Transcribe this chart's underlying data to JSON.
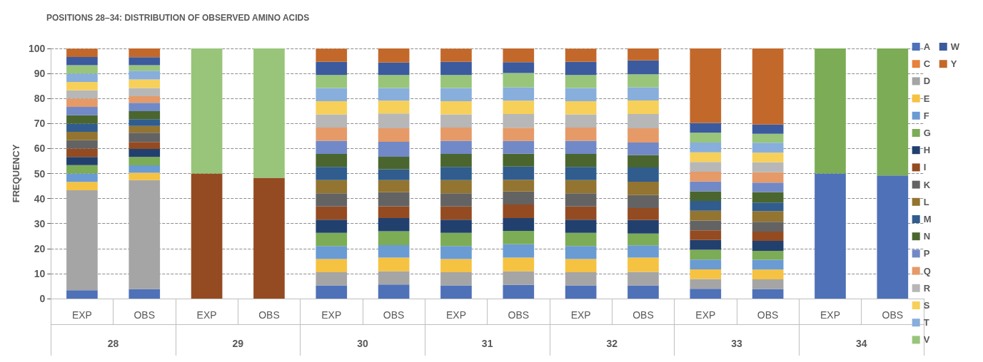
{
  "chart_data": {
    "type": "bar",
    "title": "POSITIONS 28–34: DISTRIBUTION OF OBSERVED AMINO ACIDS",
    "ylabel": "FREQUENCY",
    "categories": [
      "EXP",
      "OBS",
      "EXP",
      "OBS",
      "EXP",
      "OBS",
      "EXP",
      "OBS",
      "EXP",
      "OBS",
      "EXP",
      "OBS",
      "EXP",
      "OBS"
    ],
    "annotations": [
      "28",
      "29",
      "30",
      "31",
      "32",
      "33",
      "34"
    ],
    "stacked": true,
    "ylim": [
      0,
      100
    ],
    "yticks": [
      0,
      10,
      20,
      30,
      40,
      50,
      60,
      70,
      80,
      90,
      100
    ],
    "grid": "y",
    "legend": "right",
    "series": [
      {
        "name": "A",
        "color": "#4e71b8",
        "values": [
          3.33,
          3.8,
          0,
          0,
          5.26,
          5.6,
          5.26,
          5.5,
          5.26,
          5.3,
          3.9,
          3.8,
          50,
          49.2
        ]
      },
      {
        "name": "C",
        "color": "#e5823d",
        "values": [
          0,
          0,
          0,
          0,
          0,
          0,
          0,
          0,
          0,
          0,
          0,
          0,
          0,
          0
        ]
      },
      {
        "name": "D",
        "color": "#a5a5a5",
        "values": [
          40,
          43.6,
          0,
          0,
          5.26,
          5.3,
          5.26,
          5.4,
          5.26,
          5.4,
          3.9,
          3.9,
          0,
          0
        ]
      },
      {
        "name": "E",
        "color": "#f5c242",
        "values": [
          3.33,
          2.9,
          0,
          0,
          5.26,
          5.5,
          5.26,
          5.5,
          5.26,
          5.7,
          3.9,
          3.9,
          0,
          0
        ]
      },
      {
        "name": "F",
        "color": "#6a9bd3",
        "values": [
          3.33,
          3.0,
          0,
          0,
          5.26,
          5.0,
          5.26,
          5.3,
          5.26,
          4.9,
          3.9,
          3.9,
          0,
          0
        ]
      },
      {
        "name": "G",
        "color": "#7cac55",
        "values": [
          3.33,
          3.3,
          0,
          0,
          5.26,
          5.5,
          5.26,
          5.4,
          5.26,
          4.7,
          3.9,
          3.6,
          50,
          50.8
        ]
      },
      {
        "name": "H",
        "color": "#22406e",
        "values": [
          3.33,
          3.2,
          0,
          0,
          5.26,
          5.3,
          5.26,
          5.1,
          5.26,
          5.4,
          3.9,
          4.0,
          0,
          0
        ]
      },
      {
        "name": "I",
        "color": "#944b21",
        "values": [
          3.33,
          2.8,
          50,
          48.3,
          5.26,
          4.7,
          5.26,
          5.4,
          5.26,
          4.8,
          3.9,
          3.7,
          0,
          0
        ]
      },
      {
        "name": "K",
        "color": "#636363",
        "values": [
          3.33,
          3.7,
          0,
          0,
          5.26,
          5.6,
          5.26,
          5.2,
          5.26,
          5.2,
          3.9,
          3.9,
          0,
          0
        ]
      },
      {
        "name": "L",
        "color": "#937430",
        "values": [
          3.33,
          2.7,
          0,
          0,
          5.26,
          4.9,
          5.26,
          4.7,
          5.26,
          5.3,
          3.9,
          4.3,
          0,
          0
        ]
      },
      {
        "name": "M",
        "color": "#305d8e",
        "values": [
          3.33,
          2.7,
          0,
          0,
          5.26,
          4.3,
          5.26,
          5.3,
          5.26,
          5.7,
          3.9,
          3.4,
          0,
          0
        ]
      },
      {
        "name": "N",
        "color": "#4a662e",
        "values": [
          3.33,
          3.2,
          0,
          0,
          5.26,
          5.0,
          5.26,
          5.1,
          5.26,
          5.0,
          3.9,
          4.2,
          0,
          0
        ]
      },
      {
        "name": "P",
        "color": "#7189c7",
        "values": [
          3.33,
          3.4,
          0,
          0,
          5.26,
          6.0,
          5.26,
          5.1,
          5.26,
          5.0,
          3.9,
          3.8,
          0,
          0
        ]
      },
      {
        "name": "Q",
        "color": "#e59a68",
        "values": [
          3.33,
          2.6,
          0,
          0,
          5.26,
          5.4,
          5.26,
          5.3,
          5.26,
          5.7,
          3.9,
          4.1,
          0,
          0
        ]
      },
      {
        "name": "R",
        "color": "#b7b7b7",
        "values": [
          3.33,
          3.3,
          0,
          0,
          5.26,
          5.9,
          5.26,
          5.5,
          5.26,
          5.7,
          3.9,
          4.0,
          0,
          0
        ]
      },
      {
        "name": "S",
        "color": "#f7d05a",
        "values": [
          3.33,
          3.4,
          0,
          0,
          5.26,
          5.1,
          5.26,
          5.3,
          5.26,
          5.4,
          3.9,
          3.8,
          0,
          0
        ]
      },
      {
        "name": "T",
        "color": "#88aedb",
        "values": [
          3.33,
          3.5,
          0,
          0,
          5.26,
          5.1,
          5.26,
          5.4,
          5.26,
          5.3,
          3.9,
          4.0,
          0,
          0
        ]
      },
      {
        "name": "V",
        "color": "#98c57a",
        "values": [
          3.33,
          2.2,
          50,
          51.7,
          5.26,
          5.2,
          5.26,
          5.7,
          5.26,
          5.2,
          3.9,
          3.6,
          0,
          0
        ]
      },
      {
        "name": "W",
        "color": "#3c5a9e",
        "values": [
          3.33,
          3.2,
          0,
          0,
          5.26,
          5.0,
          5.26,
          4.3,
          5.26,
          5.5,
          3.9,
          3.7,
          0,
          0
        ]
      },
      {
        "name": "Y",
        "color": "#c3682b",
        "values": [
          3.33,
          3.5,
          0,
          0,
          5.26,
          5.6,
          5.26,
          5.5,
          5.26,
          4.8,
          29.8,
          30.4,
          0,
          0
        ]
      }
    ]
  }
}
